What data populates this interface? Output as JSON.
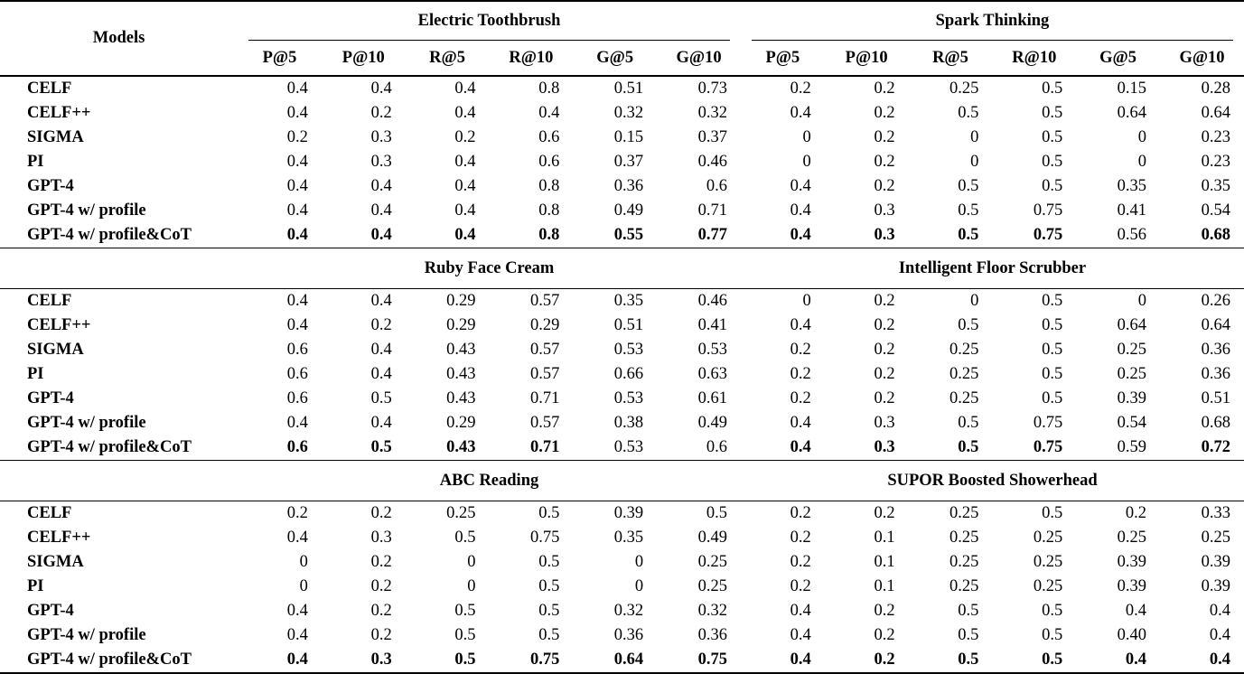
{
  "page": {
    "background": "#ffffff",
    "text_color": "#000000"
  },
  "table": {
    "models_header": "Models",
    "metric_headers": [
      "P@5",
      "P@10",
      "R@5",
      "R@10",
      "G@5",
      "G@10",
      "P@5",
      "P@10",
      "R@5",
      "R@10",
      "G@5",
      "G@10"
    ],
    "blocks": [
      {
        "products": [
          "Electric Toothbrush",
          "Spark Thinking"
        ],
        "rows": [
          {
            "model": "CELF",
            "values": [
              "0.4",
              "0.4",
              "0.4",
              "0.8",
              "0.51",
              "0.73",
              "0.2",
              "0.2",
              "0.25",
              "0.5",
              "0.15",
              "0.28"
            ],
            "bold": [
              0,
              0,
              0,
              0,
              0,
              0,
              0,
              0,
              0,
              0,
              0,
              0
            ]
          },
          {
            "model": "CELF++",
            "values": [
              "0.4",
              "0.2",
              "0.4",
              "0.4",
              "0.32",
              "0.32",
              "0.4",
              "0.2",
              "0.5",
              "0.5",
              "0.64",
              "0.64"
            ],
            "bold": [
              0,
              0,
              0,
              0,
              0,
              0,
              0,
              0,
              0,
              0,
              0,
              0
            ]
          },
          {
            "model": "SIGMA",
            "values": [
              "0.2",
              "0.3",
              "0.2",
              "0.6",
              "0.15",
              "0.37",
              "0",
              "0.2",
              "0",
              "0.5",
              "0",
              "0.23"
            ],
            "bold": [
              0,
              0,
              0,
              0,
              0,
              0,
              0,
              0,
              0,
              0,
              0,
              0
            ]
          },
          {
            "model": "PI",
            "values": [
              "0.4",
              "0.3",
              "0.4",
              "0.6",
              "0.37",
              "0.46",
              "0",
              "0.2",
              "0",
              "0.5",
              "0",
              "0.23"
            ],
            "bold": [
              0,
              0,
              0,
              0,
              0,
              0,
              0,
              0,
              0,
              0,
              0,
              0
            ]
          },
          {
            "model": "GPT-4",
            "values": [
              "0.4",
              "0.4",
              "0.4",
              "0.8",
              "0.36",
              "0.6",
              "0.4",
              "0.2",
              "0.5",
              "0.5",
              "0.35",
              "0.35"
            ],
            "bold": [
              0,
              0,
              0,
              0,
              0,
              0,
              0,
              0,
              0,
              0,
              0,
              0
            ]
          },
          {
            "model": "GPT-4 w/ profile",
            "values": [
              "0.4",
              "0.4",
              "0.4",
              "0.8",
              "0.49",
              "0.71",
              "0.4",
              "0.3",
              "0.5",
              "0.75",
              "0.41",
              "0.54"
            ],
            "bold": [
              0,
              0,
              0,
              0,
              0,
              0,
              0,
              0,
              0,
              0,
              0,
              0
            ]
          },
          {
            "model": "GPT-4 w/ profile&CoT",
            "values": [
              "0.4",
              "0.4",
              "0.4",
              "0.8",
              "0.55",
              "0.77",
              "0.4",
              "0.3",
              "0.5",
              "0.75",
              "0.56",
              "0.68"
            ],
            "bold": [
              1,
              1,
              1,
              1,
              1,
              1,
              1,
              1,
              1,
              1,
              0,
              1
            ]
          }
        ]
      },
      {
        "products": [
          "Ruby Face Cream",
          "Intelligent Floor Scrubber"
        ],
        "rows": [
          {
            "model": "CELF",
            "values": [
              "0.4",
              "0.4",
              "0.29",
              "0.57",
              "0.35",
              "0.46",
              "0",
              "0.2",
              "0",
              "0.5",
              "0",
              "0.26"
            ],
            "bold": [
              0,
              0,
              0,
              0,
              0,
              0,
              0,
              0,
              0,
              0,
              0,
              0
            ]
          },
          {
            "model": "CELF++",
            "values": [
              "0.4",
              "0.2",
              "0.29",
              "0.29",
              "0.51",
              "0.41",
              "0.4",
              "0.2",
              "0.5",
              "0.5",
              "0.64",
              "0.64"
            ],
            "bold": [
              0,
              0,
              0,
              0,
              0,
              0,
              0,
              0,
              0,
              0,
              0,
              0
            ]
          },
          {
            "model": "SIGMA",
            "values": [
              "0.6",
              "0.4",
              "0.43",
              "0.57",
              "0.53",
              "0.53",
              "0.2",
              "0.2",
              "0.25",
              "0.5",
              "0.25",
              "0.36"
            ],
            "bold": [
              0,
              0,
              0,
              0,
              0,
              0,
              0,
              0,
              0,
              0,
              0,
              0
            ]
          },
          {
            "model": "PI",
            "values": [
              "0.6",
              "0.4",
              "0.43",
              "0.57",
              "0.66",
              "0.63",
              "0.2",
              "0.2",
              "0.25",
              "0.5",
              "0.25",
              "0.36"
            ],
            "bold": [
              0,
              0,
              0,
              0,
              0,
              0,
              0,
              0,
              0,
              0,
              0,
              0
            ]
          },
          {
            "model": "GPT-4",
            "values": [
              "0.6",
              "0.5",
              "0.43",
              "0.71",
              "0.53",
              "0.61",
              "0.2",
              "0.2",
              "0.25",
              "0.5",
              "0.39",
              "0.51"
            ],
            "bold": [
              0,
              0,
              0,
              0,
              0,
              0,
              0,
              0,
              0,
              0,
              0,
              0
            ]
          },
          {
            "model": "GPT-4 w/ profile",
            "values": [
              "0.4",
              "0.4",
              "0.29",
              "0.57",
              "0.38",
              "0.49",
              "0.4",
              "0.3",
              "0.5",
              "0.75",
              "0.54",
              "0.68"
            ],
            "bold": [
              0,
              0,
              0,
              0,
              0,
              0,
              0,
              0,
              0,
              0,
              0,
              0
            ]
          },
          {
            "model": "GPT-4 w/ profile&CoT",
            "values": [
              "0.6",
              "0.5",
              "0.43",
              "0.71",
              "0.53",
              "0.6",
              "0.4",
              "0.3",
              "0.5",
              "0.75",
              "0.59",
              "0.72"
            ],
            "bold": [
              1,
              1,
              1,
              1,
              0,
              0,
              1,
              1,
              1,
              1,
              0,
              1
            ]
          }
        ]
      },
      {
        "products": [
          "ABC Reading",
          "SUPOR Boosted Showerhead"
        ],
        "rows": [
          {
            "model": "CELF",
            "values": [
              "0.2",
              "0.2",
              "0.25",
              "0.5",
              "0.39",
              "0.5",
              "0.2",
              "0.2",
              "0.25",
              "0.5",
              "0.2",
              "0.33"
            ],
            "bold": [
              0,
              0,
              0,
              0,
              0,
              0,
              0,
              0,
              0,
              0,
              0,
              0
            ]
          },
          {
            "model": "CELF++",
            "values": [
              "0.4",
              "0.3",
              "0.5",
              "0.75",
              "0.35",
              "0.49",
              "0.2",
              "0.1",
              "0.25",
              "0.25",
              "0.25",
              "0.25"
            ],
            "bold": [
              0,
              0,
              0,
              0,
              0,
              0,
              0,
              0,
              0,
              0,
              0,
              0
            ]
          },
          {
            "model": "SIGMA",
            "values": [
              "0",
              "0.2",
              "0",
              "0.5",
              "0",
              "0.25",
              "0.2",
              "0.1",
              "0.25",
              "0.25",
              "0.39",
              "0.39"
            ],
            "bold": [
              0,
              0,
              0,
              0,
              0,
              0,
              0,
              0,
              0,
              0,
              0,
              0
            ]
          },
          {
            "model": "PI",
            "values": [
              "0",
              "0.2",
              "0",
              "0.5",
              "0",
              "0.25",
              "0.2",
              "0.1",
              "0.25",
              "0.25",
              "0.39",
              "0.39"
            ],
            "bold": [
              0,
              0,
              0,
              0,
              0,
              0,
              0,
              0,
              0,
              0,
              0,
              0
            ]
          },
          {
            "model": "GPT-4",
            "values": [
              "0.4",
              "0.2",
              "0.5",
              "0.5",
              "0.32",
              "0.32",
              "0.4",
              "0.2",
              "0.5",
              "0.5",
              "0.4",
              "0.4"
            ],
            "bold": [
              0,
              0,
              0,
              0,
              0,
              0,
              0,
              0,
              0,
              0,
              0,
              0
            ]
          },
          {
            "model": "GPT-4 w/ profile",
            "values": [
              "0.4",
              "0.2",
              "0.5",
              "0.5",
              "0.36",
              "0.36",
              "0.4",
              "0.2",
              "0.5",
              "0.5",
              "0.40",
              "0.4"
            ],
            "bold": [
              0,
              0,
              0,
              0,
              0,
              0,
              0,
              0,
              0,
              0,
              0,
              0
            ]
          },
          {
            "model": "GPT-4 w/ profile&CoT",
            "values": [
              "0.4",
              "0.3",
              "0.5",
              "0.75",
              "0.64",
              "0.75",
              "0.4",
              "0.2",
              "0.5",
              "0.5",
              "0.4",
              "0.4"
            ],
            "bold": [
              1,
              1,
              1,
              1,
              1,
              1,
              1,
              1,
              1,
              1,
              1,
              1
            ]
          }
        ]
      }
    ]
  }
}
